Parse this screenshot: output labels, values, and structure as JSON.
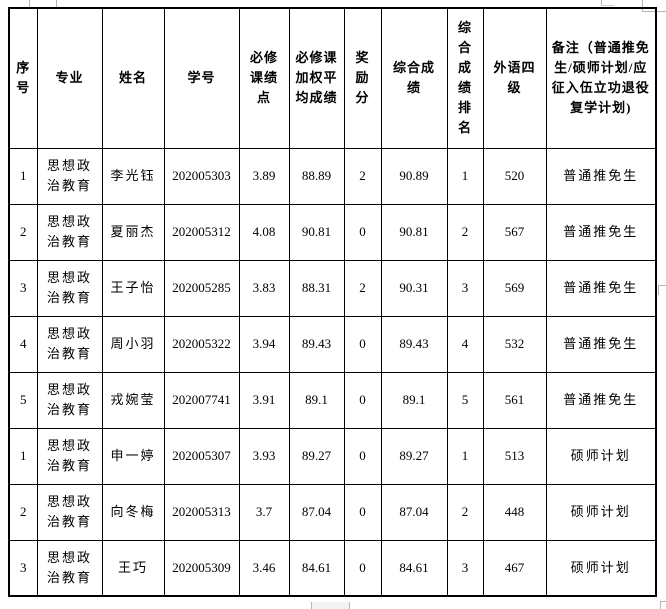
{
  "table": {
    "columns": [
      {
        "key": "index",
        "label": "序号"
      },
      {
        "key": "major",
        "label": "专业"
      },
      {
        "key": "name",
        "label": "姓名"
      },
      {
        "key": "student_id",
        "label": "学号"
      },
      {
        "key": "gpa",
        "label": "必修课绩点"
      },
      {
        "key": "weighted_avg",
        "label": "必修课加权平均成绩"
      },
      {
        "key": "bonus",
        "label": "奖励分"
      },
      {
        "key": "composite",
        "label": "综合成绩"
      },
      {
        "key": "rank",
        "label": "综合成绩排名"
      },
      {
        "key": "cet4",
        "label": "外语四级"
      },
      {
        "key": "remark",
        "label": "备注（普通推免生/硕师计划/应征入伍立功退役复学计划)"
      }
    ],
    "rows": [
      [
        "1",
        "思想政治教育",
        "李光钰",
        "202005303",
        "3.89",
        "88.89",
        "2",
        "90.89",
        "1",
        "520",
        "普通推免生"
      ],
      [
        "2",
        "思想政治教育",
        "夏丽杰",
        "202005312",
        "4.08",
        "90.81",
        "0",
        "90.81",
        "2",
        "567",
        "普通推免生"
      ],
      [
        "3",
        "思想政治教育",
        "王子怡",
        "202005285",
        "3.83",
        "88.31",
        "2",
        "90.31",
        "3",
        "569",
        "普通推免生"
      ],
      [
        "4",
        "思想政治教育",
        "周小羽",
        "202005322",
        "3.94",
        "89.43",
        "0",
        "89.43",
        "4",
        "532",
        "普通推免生"
      ],
      [
        "5",
        "思想政治教育",
        "戎婉莹",
        "202007741",
        "3.91",
        "89.1",
        "0",
        "89.1",
        "5",
        "561",
        "普通推免生"
      ],
      [
        "1",
        "思想政治教育",
        "申一婷",
        "202005307",
        "3.93",
        "89.27",
        "0",
        "89.27",
        "1",
        "513",
        "硕师计划"
      ],
      [
        "2",
        "思想政治教育",
        "向冬梅",
        "202005313",
        "3.7",
        "87.04",
        "0",
        "87.04",
        "2",
        "448",
        "硕师计划"
      ],
      [
        "3",
        "思想政治教育",
        "王巧",
        "202005309",
        "3.46",
        "84.61",
        "0",
        "84.61",
        "3",
        "467",
        "硕师计划"
      ]
    ]
  },
  "colors": {
    "text": "#000000",
    "table_border": "#000000",
    "background": "#ffffff",
    "grid_artifact": "#b4b4b4"
  }
}
